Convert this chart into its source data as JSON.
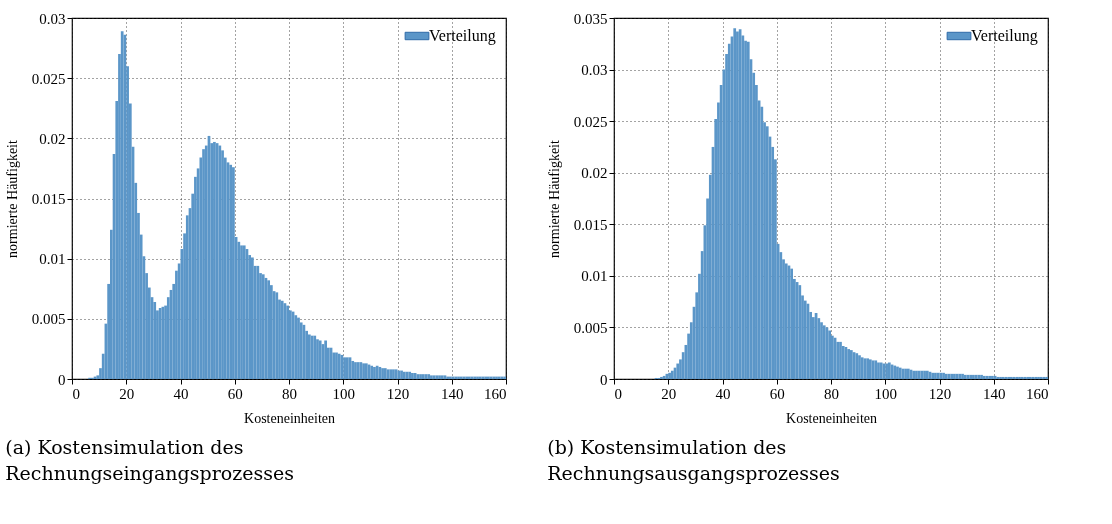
{
  "chart_data": [
    {
      "type": "histogram",
      "xlabel": "Kosteneinheiten",
      "ylabel": "normierte Häufigkeit",
      "annotations": [
        "(a) Kostensimulation des Rechnungseingangsprozesses"
      ],
      "xlim": [
        0,
        160
      ],
      "ylim": [
        0,
        0.03
      ],
      "xticks": [
        0,
        20,
        40,
        60,
        80,
        100,
        120,
        140,
        160
      ],
      "yticks": [
        0,
        0.005,
        0.01,
        0.015,
        0.02,
        0.025,
        0.03
      ],
      "grid": true,
      "legend": "top right",
      "bins": [
        6,
        7,
        8,
        9,
        10,
        11,
        12,
        13,
        14,
        15,
        16,
        17,
        18,
        19,
        20,
        21,
        22,
        23,
        24,
        25,
        26,
        27,
        28,
        29,
        30,
        31,
        32,
        33,
        34,
        35,
        36,
        37,
        38,
        39,
        40,
        41,
        42,
        43,
        44,
        45,
        46,
        47,
        48,
        49,
        50,
        51,
        52,
        53,
        54,
        55,
        56,
        57,
        58,
        59,
        60,
        61,
        62,
        63,
        64,
        65,
        66,
        67,
        68,
        69,
        70,
        71,
        72,
        73,
        74,
        75,
        76,
        77,
        78,
        79,
        80,
        81,
        82,
        83,
        84,
        85,
        86,
        87,
        88,
        89,
        90,
        91,
        92,
        93,
        94,
        95,
        96,
        97,
        98,
        99,
        100,
        101,
        102,
        103,
        104,
        105,
        106,
        107,
        108,
        109,
        110,
        111,
        112,
        113,
        114,
        115,
        116,
        117,
        118,
        119,
        120,
        121,
        122,
        123,
        124,
        125,
        126,
        127,
        128,
        129,
        130,
        131,
        132,
        133,
        134,
        135,
        136,
        137,
        138,
        139,
        140,
        141,
        142,
        143,
        144,
        145,
        146,
        147,
        148,
        149,
        150,
        151,
        152,
        153,
        154,
        155,
        156,
        157,
        158,
        159,
        160
      ],
      "series": [
        {
          "name": "Verteilung",
          "color": "#5b96c8",
          "values": [
            0.0001,
            0.0001,
            0.0002,
            0.0003,
            0.0009,
            0.0021,
            0.0046,
            0.0079,
            0.0124,
            0.0187,
            0.0231,
            0.027,
            0.0289,
            0.0286,
            0.026,
            0.0229,
            0.0193,
            0.0163,
            0.0138,
            0.012,
            0.0102,
            0.0088,
            0.0076,
            0.0068,
            0.0064,
            0.0057,
            0.0059,
            0.006,
            0.0061,
            0.0068,
            0.0074,
            0.0079,
            0.009,
            0.0096,
            0.0108,
            0.0121,
            0.0136,
            0.0142,
            0.0154,
            0.0168,
            0.0175,
            0.0184,
            0.0191,
            0.0194,
            0.0202,
            0.0196,
            0.0197,
            0.0196,
            0.0194,
            0.019,
            0.0184,
            0.018,
            0.0178,
            0.0176,
            0.0118,
            0.0114,
            0.0111,
            0.0111,
            0.0108,
            0.0103,
            0.0101,
            0.0094,
            0.0094,
            0.0088,
            0.0087,
            0.0084,
            0.0082,
            0.0078,
            0.0073,
            0.0072,
            0.0066,
            0.0065,
            0.0063,
            0.0061,
            0.0057,
            0.0056,
            0.0053,
            0.0051,
            0.0047,
            0.0045,
            0.004,
            0.0037,
            0.0036,
            0.0036,
            0.0033,
            0.0032,
            0.0029,
            0.0032,
            0.0026,
            0.0026,
            0.0022,
            0.0022,
            0.0021,
            0.002,
            0.0018,
            0.0018,
            0.0018,
            0.0015,
            0.0014,
            0.0014,
            0.0014,
            0.0013,
            0.0013,
            0.0012,
            0.0011,
            0.001,
            0.0011,
            0.001,
            0.0009,
            0.0009,
            0.0008,
            0.0008,
            0.0008,
            0.0008,
            0.0007,
            0.0007,
            0.0006,
            0.0006,
            0.0006,
            0.0005,
            0.0005,
            0.0004,
            0.0004,
            0.0004,
            0.0004,
            0.0004,
            0.0003,
            0.0003,
            0.0003,
            0.0003,
            0.0003,
            0.0003,
            0.0002,
            0.0002,
            0.0002,
            0.0002,
            0.0002,
            0.0002,
            0.0002,
            0.0002,
            0.0002,
            0.0002,
            0.0002,
            0.0002,
            0.0002,
            0.0002,
            0.0002,
            0.0002,
            0.0002,
            0.0002,
            0.0002,
            0.0002,
            0.0002,
            0.0002
          ]
        }
      ]
    },
    {
      "type": "histogram",
      "xlabel": "Kosteneinheiten",
      "ylabel": "normierte Häufigkeit",
      "annotations": [
        "(b) Kostensimulation des Rechnungsausgangsprozesses"
      ],
      "xlim": [
        0,
        160
      ],
      "ylim": [
        0,
        0.035
      ],
      "xticks": [
        0,
        20,
        40,
        60,
        80,
        100,
        120,
        140,
        160
      ],
      "yticks": [
        0,
        0.005,
        0.01,
        0.015,
        0.02,
        0.025,
        0.03,
        0.035
      ],
      "grid": true,
      "legend": "top right",
      "bins": [
        15,
        16,
        17,
        18,
        19,
        20,
        21,
        22,
        23,
        24,
        25,
        26,
        27,
        28,
        29,
        30,
        31,
        32,
        33,
        34,
        35,
        36,
        37,
        38,
        39,
        40,
        41,
        42,
        43,
        44,
        45,
        46,
        47,
        48,
        49,
        50,
        51,
        52,
        53,
        54,
        55,
        56,
        57,
        58,
        59,
        60,
        61,
        62,
        63,
        64,
        65,
        66,
        67,
        68,
        69,
        70,
        71,
        72,
        73,
        74,
        75,
        76,
        77,
        78,
        79,
        80,
        81,
        82,
        83,
        84,
        85,
        86,
        87,
        88,
        89,
        90,
        91,
        92,
        93,
        94,
        95,
        96,
        97,
        98,
        99,
        100,
        101,
        102,
        103,
        104,
        105,
        106,
        107,
        108,
        109,
        110,
        111,
        112,
        113,
        114,
        115,
        116,
        117,
        118,
        119,
        120,
        121,
        122,
        123,
        124,
        125,
        126,
        127,
        128,
        129,
        130,
        131,
        132,
        133,
        134,
        135,
        136,
        137,
        138,
        139,
        140,
        141,
        142,
        143,
        144,
        145,
        146,
        147,
        148,
        149,
        150,
        151,
        152,
        153,
        154,
        155,
        156,
        157,
        158,
        159,
        160
      ],
      "series": [
        {
          "name": "Verteilung",
          "color": "#5b96c8",
          "values": [
            0.0001,
            0.0001,
            0.0002,
            0.0003,
            0.0005,
            0.0006,
            0.0008,
            0.0011,
            0.0015,
            0.0019,
            0.0026,
            0.0033,
            0.0044,
            0.0055,
            0.007,
            0.0084,
            0.0102,
            0.0124,
            0.0149,
            0.0175,
            0.0198,
            0.0225,
            0.0252,
            0.0268,
            0.0285,
            0.03,
            0.0315,
            0.0325,
            0.0332,
            0.034,
            0.0337,
            0.0339,
            0.0333,
            0.0328,
            0.0327,
            0.031,
            0.0297,
            0.0285,
            0.027,
            0.0264,
            0.0249,
            0.0245,
            0.0235,
            0.0225,
            0.0213,
            0.0131,
            0.0123,
            0.0116,
            0.0112,
            0.011,
            0.0107,
            0.0097,
            0.0094,
            0.0091,
            0.0081,
            0.0076,
            0.0073,
            0.0065,
            0.006,
            0.0064,
            0.0059,
            0.0055,
            0.0052,
            0.005,
            0.0047,
            0.0042,
            0.004,
            0.0036,
            0.0036,
            0.0032,
            0.0031,
            0.0029,
            0.0028,
            0.0026,
            0.0025,
            0.0023,
            0.0021,
            0.002,
            0.002,
            0.0019,
            0.0018,
            0.0018,
            0.0016,
            0.0016,
            0.0015,
            0.0015,
            0.0016,
            0.0014,
            0.0013,
            0.0012,
            0.0011,
            0.001,
            0.001,
            0.001,
            0.0009,
            0.0008,
            0.0008,
            0.0008,
            0.0008,
            0.0008,
            0.0008,
            0.0007,
            0.0006,
            0.0006,
            0.0006,
            0.0006,
            0.0006,
            0.0005,
            0.0005,
            0.0005,
            0.0005,
            0.0005,
            0.0005,
            0.0005,
            0.0004,
            0.0004,
            0.0004,
            0.0004,
            0.0004,
            0.0004,
            0.0004,
            0.0003,
            0.0003,
            0.0003,
            0.0003,
            0.0003,
            0.0002,
            0.0002,
            0.0002,
            0.0002,
            0.0002,
            0.0002,
            0.0002,
            0.0002,
            0.0002,
            0.0002,
            0.0002,
            0.0002,
            0.0002,
            0.0002,
            0.0002,
            0.0002,
            0.0002,
            0.0002,
            0.0002
          ]
        }
      ]
    }
  ]
}
